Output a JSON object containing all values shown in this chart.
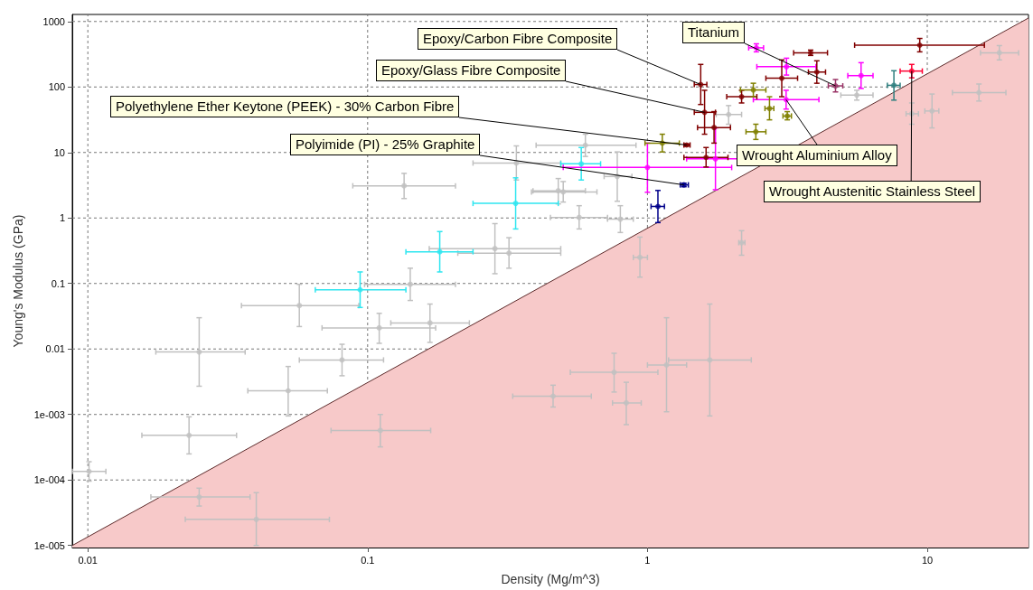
{
  "chart_data": {
    "type": "scatter",
    "xlabel": "Density (Mg/m^3)",
    "ylabel": "Young's Modulus (GPa)",
    "log": "xy",
    "grid": true,
    "legend": false,
    "marker": "circle",
    "xlim": [
      0.0088,
      23
    ],
    "ylim": [
      9.3e-06,
      1280
    ],
    "xticks": [
      0.01,
      0.1,
      1,
      10
    ],
    "yticks": [
      {
        "value": 1e-05,
        "label": "1e-005"
      },
      {
        "value": 0.0001,
        "label": "1e-004"
      },
      {
        "value": 0.001,
        "label": "1e-003"
      },
      0.01,
      0.1,
      1,
      10,
      100,
      1000
    ],
    "series": [
      {
        "type": "area",
        "marker": "none",
        "color": "#f7c9c9",
        "x": [
          0.0088,
          23
        ],
        "values": [
          1e-05,
          1130
        ]
      },
      {
        "color": "#c0c0c0",
        "x": [
          0.0101,
          0.023,
          0.025,
          0.04,
          0.025,
          0.052,
          0.081,
          0.057,
          0.11,
          0.167,
          0.142,
          0.135,
          0.285,
          0.32,
          0.34,
          0.5,
          0.57,
          0.8,
          0.6,
          0.78,
          0.48,
          0.76,
          0.46,
          0.111,
          1.67,
          1.17,
          0.84,
          0.94,
          2.17,
          15.3,
          18.1,
          10.4,
          8.8,
          1.95,
          5.6
        ],
        "values": [
          0.000135,
          0.00048,
          5.5e-05,
          2.5e-05,
          0.009,
          0.0023,
          0.0068,
          0.046,
          0.021,
          0.025,
          0.097,
          3.1,
          0.34,
          0.29,
          6.9,
          2.5,
          1.02,
          0.96,
          12.9,
          4.3,
          2.6,
          0.0044,
          0.0019,
          0.00057,
          0.0068,
          0.0057,
          0.0015,
          0.25,
          0.42,
          82,
          333,
          43,
          39,
          38,
          75
        ],
        "xerrors": [
          [
            0.0088,
            0.0116
          ],
          [
            0.0156,
            0.034
          ],
          [
            0.0168,
            0.038
          ],
          [
            0.0223,
            0.073
          ],
          [
            0.0175,
            0.0365
          ],
          [
            0.0373,
            0.0718
          ],
          [
            0.057,
            0.114
          ],
          [
            0.0354,
            0.093
          ],
          [
            0.0687,
            0.175
          ],
          [
            0.121,
            0.231
          ],
          [
            0.0975,
            0.206
          ],
          [
            0.0885,
            0.206
          ],
          [
            0.166,
            0.49
          ],
          [
            0.21,
            0.49
          ],
          [
            0.238,
            0.49
          ],
          [
            0.385,
            0.66
          ],
          [
            0.45,
            0.72
          ],
          [
            0.72,
            0.89
          ],
          [
            0.4,
            0.91
          ],
          [
            0.7,
            0.88
          ],
          [
            0.39,
            0.6
          ],
          [
            0.53,
            1.09
          ],
          [
            0.33,
            0.63
          ],
          [
            0.074,
            0.168
          ],
          [
            1.19,
            2.35
          ],
          [
            1.0,
            1.38
          ],
          [
            0.75,
            0.95
          ],
          [
            0.89,
            1.0
          ],
          [
            2.12,
            2.23
          ],
          [
            12.3,
            19.1
          ],
          [
            15.5,
            21.2
          ],
          [
            9.8,
            11.0
          ],
          [
            8.4,
            9.3
          ],
          [
            1.76,
            2.17
          ],
          [
            4.91,
            6.4
          ]
        ],
        "errors": [
          [
            9.6e-05,
            0.00019
          ],
          [
            0.00025,
            0.00092
          ],
          [
            4e-05,
            7.5e-05
          ],
          [
            1e-05,
            6.4e-05
          ],
          [
            0.0027,
            0.03
          ],
          [
            0.00095,
            0.0054
          ],
          [
            0.0039,
            0.0118
          ],
          [
            0.022,
            0.097
          ],
          [
            0.0122,
            0.035
          ],
          [
            0.0126,
            0.0485
          ],
          [
            0.055,
            0.171
          ],
          [
            1.98,
            4.8
          ],
          [
            0.141,
            0.82
          ],
          [
            0.171,
            0.5
          ],
          [
            3.8,
            12.6
          ],
          [
            1.75,
            3.6
          ],
          [
            0.68,
            1.54
          ],
          [
            0.6,
            1.54
          ],
          [
            8.7,
            19
          ],
          [
            1.8,
            10.2
          ],
          [
            1.64,
            4.0
          ],
          [
            0.0022,
            0.0086
          ],
          [
            0.0013,
            0.0028
          ],
          [
            0.00032,
            0.001
          ],
          [
            0.00095,
            0.0485
          ],
          [
            0.0011,
            0.03
          ],
          [
            0.0007,
            0.0031
          ],
          [
            0.125,
            0.51
          ],
          [
            0.27,
            0.64
          ],
          [
            61,
            111
          ],
          [
            259,
            428
          ],
          [
            23.7,
            78
          ],
          [
            27,
            57
          ],
          [
            27,
            52
          ],
          [
            63,
            89
          ]
        ]
      },
      {
        "color": "#2ee6f0",
        "x": [
          0.094,
          0.181,
          0.338,
          0.58
        ],
        "values": [
          0.08,
          0.305,
          1.67,
          6.7
        ],
        "xerrors": [
          [
            0.065,
            0.137
          ],
          [
            0.137,
            0.238
          ],
          [
            0.238,
            0.48
          ],
          [
            0.49,
            0.68
          ]
        ],
        "errors": [
          [
            0.043,
            0.15
          ],
          [
            0.15,
            0.62
          ],
          [
            0.68,
            4.1
          ],
          [
            3.8,
            11.9
          ]
        ]
      },
      {
        "color": "#ff00ff",
        "x": [
          1.0,
          1.75,
          3.13,
          3.14,
          5.8,
          2.45
        ],
        "values": [
          5.9,
          8.0,
          64,
          204,
          149,
          396
        ],
        "xerrors": [
          [
            0.5,
            2.0
          ],
          [
            1.38,
            2.22
          ],
          [
            2.39,
            4.1
          ],
          [
            2.46,
            4.0
          ],
          [
            5.2,
            6.4
          ],
          [
            2.3,
            2.6
          ]
        ],
        "errors": [
          [
            2.47,
            13.9
          ],
          [
            2.7,
            23.7
          ],
          [
            46,
            89
          ],
          [
            152,
            275
          ],
          [
            95,
            235
          ],
          [
            344,
            456
          ]
        ]
      },
      {
        "color": "#800000",
        "x": [
          9.4,
          1.55,
          1.6,
          1.73,
          1.62,
          2.17,
          3.02,
          4.03,
          3.83,
          1.38
        ],
        "values": [
          435,
          109,
          41,
          24,
          8.4,
          71,
          136,
          169,
          333,
          13
        ],
        "xerrors": [
          [
            5.5,
            16.0
          ],
          [
            1.47,
            1.63
          ],
          [
            1.47,
            1.75
          ],
          [
            1.51,
            1.98
          ],
          [
            1.35,
            1.94
          ],
          [
            1.92,
            2.46
          ],
          [
            2.65,
            3.44
          ],
          [
            3.76,
            4.33
          ],
          [
            3.33,
            4.4
          ],
          [
            1.35,
            1.42
          ]
        ],
        "errors": [
          [
            344,
            551
          ],
          [
            54,
            221
          ],
          [
            19,
            89
          ],
          [
            13.9,
            42
          ],
          [
            6.0,
            11.9
          ],
          [
            57,
            89
          ],
          [
            71,
            259
          ],
          [
            114,
            251
          ],
          [
            303,
            366
          ],
          [
            12.5,
            13.5
          ]
        ]
      },
      {
        "color": "#808000",
        "x": [
          1.13,
          2.73,
          2.44,
          3.16,
          2.39
        ],
        "values": [
          13.9,
          47,
          20.7,
          36,
          90
        ],
        "xerrors": [
          [
            0.98,
            1.3
          ],
          [
            2.63,
            2.83
          ],
          [
            2.25,
            2.65
          ],
          [
            3.05,
            3.27
          ],
          [
            2.15,
            2.65
          ]
        ],
        "errors": [
          [
            10.2,
            19
          ],
          [
            31.5,
            71
          ],
          [
            15.8,
            27
          ],
          [
            31.5,
            42
          ],
          [
            71,
            114
          ]
        ]
      },
      {
        "color": "#00008b",
        "x": [
          1.09,
          1.35
        ],
        "values": [
          1.5,
          3.2
        ],
        "xerrors": [
          [
            1.03,
            1.15
          ],
          [
            1.31,
            1.4
          ]
        ],
        "errors": [
          [
            0.85,
            2.63
          ],
          [
            3.0,
            3.4
          ]
        ]
      },
      {
        "color": "#2f7f7f",
        "x": [
          7.6
        ],
        "values": [
          106
        ],
        "xerrors": [
          [
            7.2,
            8.0
          ]
        ],
        "errors": [
          [
            63,
            177
          ]
        ]
      },
      {
        "color": "#ff0033",
        "x": [
          8.8
        ],
        "values": [
          175
        ],
        "xerrors": [
          [
            8.0,
            9.6
          ]
        ],
        "errors": [
          [
            138,
            221
          ]
        ]
      },
      {
        "color": "#993366",
        "x": [
          4.7
        ],
        "values": [
          104
        ],
        "xerrors": [
          [
            4.43,
            4.99
          ]
        ],
        "errors": [
          [
            84,
            130
          ]
        ]
      }
    ],
    "annotations": [
      {
        "text": "Titanium",
        "x": 4.7,
        "y": 104
      },
      {
        "text": "Epoxy/Carbon Fibre Composite",
        "x": 1.55,
        "y": 109
      },
      {
        "text": "Epoxy/Glass Fibre Composite",
        "x": 1.6,
        "y": 41
      },
      {
        "text": "Polyethylene Ether Keytone (PEEK) - 30% Carbon Fibre",
        "x": 1.38,
        "y": 13
      },
      {
        "text": "Polyimide (PI) - 25% Graphite",
        "x": 1.35,
        "y": 3.2
      },
      {
        "text": "Wrought Aluminium Alloy",
        "x": 3.13,
        "y": 64
      },
      {
        "text": "Wrought Austenitic Stainless Steel",
        "x": 8.8,
        "y": 175
      }
    ]
  }
}
